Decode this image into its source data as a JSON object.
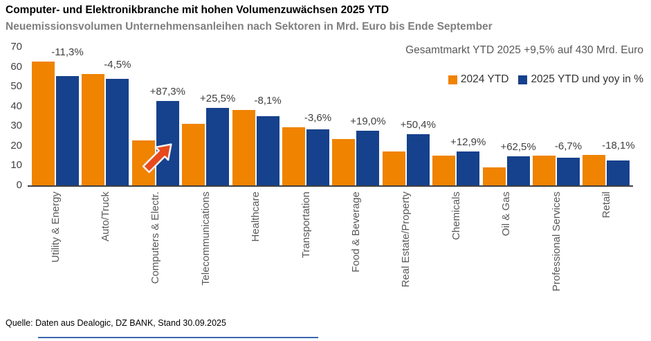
{
  "header": {
    "title": "Computer- und Elektronikbranche mit hohen Volumenzuwächsen 2025 YTD",
    "subtitle": "Neuemissionsvolumen Unternehmensanleihen nach Sektoren in Mrd. Euro bis Ende September"
  },
  "annotation": "Gesamtmarkt YTD 2025 +9,5% auf 430 Mrd. Euro",
  "legend": [
    {
      "label": "2024 YTD",
      "color": "#F08300"
    },
    {
      "label": "2025 YTD und yoy in %",
      "color": "#16418C"
    }
  ],
  "source": "Quelle: Daten aus Dealogic, DZ BANK, Stand 30.09.2025",
  "colors": {
    "bar_2024": "#F08300",
    "bar_2025": "#16418C",
    "arrow_fill": "#E8491D",
    "arrow_outline": "#F2F2F2",
    "axis": "#404040",
    "category_text": "#595959",
    "subtitle_text": "#7F7F7F",
    "bottom_rule": "#3A66B0"
  },
  "chart_data": {
    "type": "bar",
    "title": "Computer- und Elektronikbranche mit hohen Volumenzuwächsen 2025 YTD",
    "subtitle": "Neuemissionsvolumen Unternehmensanleihen nach Sektoren in Mrd. Euro bis Ende September",
    "categories": [
      "Utility & Energy",
      "Auto/Truck",
      "Computers & Electr.",
      "Telecommunications",
      "Healthcare",
      "Transportation",
      "Food & Beverage",
      "Real Estate/Property",
      "Chemicals",
      "Oil & Gas",
      "Professional Services",
      "Retail"
    ],
    "series": [
      {
        "name": "2024 YTD",
        "color": "#F08300",
        "values": [
          62.5,
          56.5,
          22.8,
          31.3,
          38.0,
          29.5,
          23.3,
          17.3,
          15.2,
          9.0,
          15.0,
          15.5
        ]
      },
      {
        "name": "2025 YTD und yoy in %",
        "color": "#16418C",
        "values": [
          55.4,
          54.0,
          42.7,
          39.3,
          34.9,
          28.4,
          27.7,
          26.0,
          17.2,
          14.6,
          14.0,
          12.7
        ]
      }
    ],
    "yoy_labels": [
      "-11,3%",
      "-4,5%",
      "+87,3%",
      "+25,5%",
      "-8,1%",
      "-3,6%",
      "+19,0%",
      "+50,4%",
      "+12,9%",
      "+62,5%",
      "-6,7%",
      "-18,1%"
    ],
    "ylabel": "Mrd. Euro",
    "ylim": [
      0,
      70
    ],
    "yticks": [
      0,
      10,
      20,
      30,
      40,
      50,
      60,
      70
    ],
    "grid": false,
    "legend_position": "top-right",
    "highlight_arrow_category": "Computers & Electr.",
    "annotation": "Gesamtmarkt YTD 2025 +9,5% auf 430 Mrd. Euro"
  }
}
